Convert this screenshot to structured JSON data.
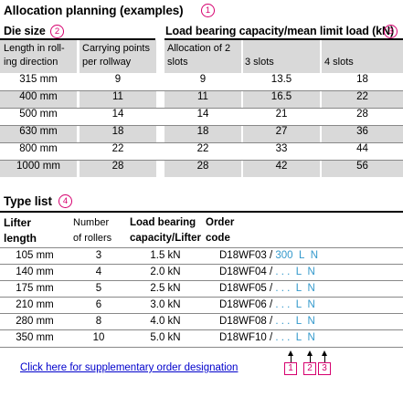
{
  "allocation": {
    "title": "Allocation planning (examples)",
    "marker": "1",
    "die_size_label": "Die size",
    "die_size_marker": "2",
    "load_label": "Load bearing capacity/mean limit load (kN)",
    "load_marker": "3",
    "col_length": "Length in roll-ing direction",
    "col_carrying": "Carrying points per rollway",
    "col_2slots": "Allocation of 2 slots",
    "col_3slots": "3 slots",
    "col_4slots": "4 slots",
    "rows": [
      {
        "length": "315 mm",
        "carrying": "9",
        "s2": "9",
        "s3": "13.5",
        "s4": "18"
      },
      {
        "length": "400 mm",
        "carrying": "11",
        "s2": "11",
        "s3": "16.5",
        "s4": "22"
      },
      {
        "length": "500 mm",
        "carrying": "14",
        "s2": "14",
        "s3": "21",
        "s4": "28"
      },
      {
        "length": "630 mm",
        "carrying": "18",
        "s2": "18",
        "s3": "27",
        "s4": "36"
      },
      {
        "length": "800 mm",
        "carrying": "22",
        "s2": "22",
        "s3": "33",
        "s4": "44"
      },
      {
        "length": "1000 mm",
        "carrying": "28",
        "s2": "28",
        "s3": "42",
        "s4": "56"
      }
    ]
  },
  "types": {
    "title": "Type list",
    "marker": "4",
    "col_lifter_1": "Lifter",
    "col_lifter_2": "length",
    "col_rollers_1": "Number",
    "col_rollers_2": "of rollers",
    "col_load_1": "Load bearing",
    "col_load_2": "capacity/Lifter",
    "col_order_1": "Order",
    "col_order_2": "code",
    "rows": [
      {
        "length": "105 mm",
        "rollers": "3",
        "load": "1.5 kN",
        "code": "D18WF03 /",
        "a": "300",
        "b": "L",
        "c": "N"
      },
      {
        "length": "140 mm",
        "rollers": "4",
        "load": "2.0 kN",
        "code": "D18WF04 /",
        "a": ". . .",
        "b": "L",
        "c": "N"
      },
      {
        "length": "175 mm",
        "rollers": "5",
        "load": "2.5 kN",
        "code": "D18WF05 /",
        "a": ". . .",
        "b": "L",
        "c": "N"
      },
      {
        "length": "210 mm",
        "rollers": "6",
        "load": "3.0 kN",
        "code": "D18WF06 /",
        "a": ". . .",
        "b": "L",
        "c": "N"
      },
      {
        "length": "280 mm",
        "rollers": "8",
        "load": "4.0 kN",
        "code": "D18WF08 /",
        "a": ". . .",
        "b": "L",
        "c": "N"
      },
      {
        "length": "350 mm",
        "rollers": "10",
        "load": "5.0 kN",
        "code": "D18WF10 /",
        "a": ". . .",
        "b": "L",
        "c": "N"
      }
    ],
    "markers": [
      "1",
      "2",
      "3"
    ],
    "link": "Click here for supplementary order designation"
  },
  "colors": {
    "accent": "#d6006f",
    "link": "#0000cc",
    "code_blue": "#3399cc",
    "grey": "#d9d9d9"
  }
}
